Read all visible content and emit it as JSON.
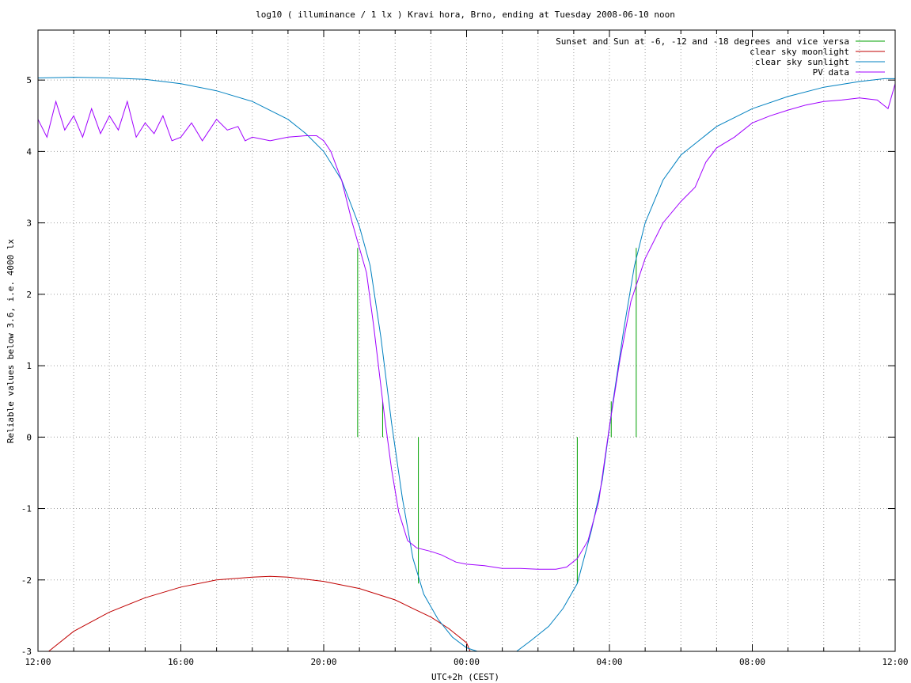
{
  "chart_data": {
    "type": "line",
    "title": "log10 ( illuminance / 1 lx ) Kravi hora, Brno, ending at Tuesday 2008-06-10 noon",
    "xlabel": "UTC+2h (CEST)",
    "ylabel": "Reliable values below 3.6, i.e. 4000 lx",
    "x_unit": "hours since 12:00",
    "xlim": [
      0,
      24
    ],
    "ylim": [
      -3,
      5.7
    ],
    "grid": true,
    "legend_position": "top-right",
    "x_ticks": [
      {
        "x": 0,
        "label": "12:00"
      },
      {
        "x": 4,
        "label": "16:00"
      },
      {
        "x": 8,
        "label": "20:00"
      },
      {
        "x": 12,
        "label": "00:00"
      },
      {
        "x": 16,
        "label": "04:00"
      },
      {
        "x": 20,
        "label": "08:00"
      },
      {
        "x": 24,
        "label": "12:00"
      }
    ],
    "y_ticks": [
      {
        "y": -3,
        "label": "-3"
      },
      {
        "y": -2,
        "label": "-2"
      },
      {
        "y": -1,
        "label": "-1"
      },
      {
        "y": 0,
        "label": "0"
      },
      {
        "y": 1,
        "label": "1"
      },
      {
        "y": 2,
        "label": "2"
      },
      {
        "y": 3,
        "label": "3"
      },
      {
        "y": 4,
        "label": "4"
      },
      {
        "y": 5,
        "label": "5"
      }
    ],
    "series": [
      {
        "name": "Sunset and Sun at -6, -12 and -18 degrees and vice versa",
        "color": "#00a000",
        "kind": "impulses",
        "points": [
          [
            8.95,
            2.65
          ],
          [
            9.65,
            0.5
          ],
          [
            10.65,
            -2.05
          ],
          [
            15.1,
            -2.05
          ],
          [
            16.05,
            0.5
          ],
          [
            16.75,
            2.65
          ]
        ]
      },
      {
        "name": "clear sky moonlight",
        "color": "#c00000",
        "kind": "line",
        "points": [
          [
            0.3,
            -3.0
          ],
          [
            1,
            -2.72
          ],
          [
            2,
            -2.45
          ],
          [
            3,
            -2.25
          ],
          [
            4,
            -2.1
          ],
          [
            5,
            -2.0
          ],
          [
            6,
            -1.96
          ],
          [
            6.5,
            -1.95
          ],
          [
            7,
            -1.96
          ],
          [
            8,
            -2.02
          ],
          [
            9,
            -2.12
          ],
          [
            10,
            -2.28
          ],
          [
            10.5,
            -2.4
          ],
          [
            11,
            -2.52
          ],
          [
            11.5,
            -2.68
          ],
          [
            12,
            -2.88
          ],
          [
            12.1,
            -3.0
          ]
        ]
      },
      {
        "name": "clear sky sunlight",
        "color": "#0080c0",
        "kind": "line",
        "points": [
          [
            0,
            5.03
          ],
          [
            1,
            5.04
          ],
          [
            2,
            5.03
          ],
          [
            3,
            5.01
          ],
          [
            4,
            4.95
          ],
          [
            5,
            4.85
          ],
          [
            6,
            4.7
          ],
          [
            7,
            4.45
          ],
          [
            7.5,
            4.25
          ],
          [
            8,
            4.0
          ],
          [
            8.5,
            3.6
          ],
          [
            9,
            2.95
          ],
          [
            9.3,
            2.4
          ],
          [
            9.6,
            1.4
          ],
          [
            9.9,
            0.2
          ],
          [
            10.2,
            -0.85
          ],
          [
            10.5,
            -1.7
          ],
          [
            10.8,
            -2.2
          ],
          [
            11.2,
            -2.55
          ],
          [
            11.6,
            -2.8
          ],
          [
            12.0,
            -2.95
          ],
          [
            12.3,
            -3.0
          ],
          [
            13.4,
            -3.0
          ],
          [
            13.8,
            -2.85
          ],
          [
            14.3,
            -2.65
          ],
          [
            14.7,
            -2.4
          ],
          [
            15.1,
            -2.05
          ],
          [
            15.5,
            -1.3
          ],
          [
            15.8,
            -0.6
          ],
          [
            16.1,
            0.5
          ],
          [
            16.4,
            1.5
          ],
          [
            16.7,
            2.4
          ],
          [
            17,
            3.0
          ],
          [
            17.5,
            3.6
          ],
          [
            18,
            3.95
          ],
          [
            19,
            4.35
          ],
          [
            20,
            4.6
          ],
          [
            21,
            4.77
          ],
          [
            22,
            4.9
          ],
          [
            23,
            4.98
          ],
          [
            23.7,
            5.02
          ],
          [
            24,
            5.02
          ]
        ]
      },
      {
        "name": "PV data",
        "color": "#a000ff",
        "kind": "line",
        "points": [
          [
            0,
            4.45
          ],
          [
            0.25,
            4.2
          ],
          [
            0.5,
            4.7
          ],
          [
            0.75,
            4.3
          ],
          [
            1,
            4.5
          ],
          [
            1.25,
            4.2
          ],
          [
            1.5,
            4.6
          ],
          [
            1.75,
            4.25
          ],
          [
            2,
            4.5
          ],
          [
            2.25,
            4.3
          ],
          [
            2.5,
            4.7
          ],
          [
            2.75,
            4.2
          ],
          [
            3,
            4.4
          ],
          [
            3.25,
            4.25
          ],
          [
            3.5,
            4.5
          ],
          [
            3.75,
            4.15
          ],
          [
            4,
            4.2
          ],
          [
            4.3,
            4.4
          ],
          [
            4.6,
            4.15
          ],
          [
            5,
            4.45
          ],
          [
            5.3,
            4.3
          ],
          [
            5.6,
            4.35
          ],
          [
            5.8,
            4.15
          ],
          [
            6,
            4.2
          ],
          [
            6.5,
            4.15
          ],
          [
            7,
            4.2
          ],
          [
            7.5,
            4.22
          ],
          [
            7.8,
            4.22
          ],
          [
            8,
            4.15
          ],
          [
            8.2,
            4.0
          ],
          [
            8.5,
            3.6
          ],
          [
            8.8,
            3.0
          ],
          [
            9.0,
            2.65
          ],
          [
            9.2,
            2.3
          ],
          [
            9.4,
            1.55
          ],
          [
            9.7,
            0.3
          ],
          [
            9.9,
            -0.45
          ],
          [
            10.1,
            -1.05
          ],
          [
            10.35,
            -1.45
          ],
          [
            10.6,
            -1.55
          ],
          [
            11.0,
            -1.6
          ],
          [
            11.3,
            -1.65
          ],
          [
            11.5,
            -1.7
          ],
          [
            11.7,
            -1.75
          ],
          [
            12,
            -1.78
          ],
          [
            12.5,
            -1.8
          ],
          [
            13,
            -1.84
          ],
          [
            13.5,
            -1.84
          ],
          [
            14,
            -1.85
          ],
          [
            14.5,
            -1.85
          ],
          [
            14.8,
            -1.82
          ],
          [
            15.1,
            -1.7
          ],
          [
            15.4,
            -1.45
          ],
          [
            15.7,
            -0.9
          ],
          [
            16.0,
            0.15
          ],
          [
            16.3,
            1.1
          ],
          [
            16.6,
            1.9
          ],
          [
            17,
            2.5
          ],
          [
            17.5,
            3.0
          ],
          [
            18,
            3.3
          ],
          [
            18.4,
            3.5
          ],
          [
            18.7,
            3.85
          ],
          [
            19,
            4.05
          ],
          [
            19.5,
            4.2
          ],
          [
            20,
            4.4
          ],
          [
            20.5,
            4.5
          ],
          [
            21,
            4.58
          ],
          [
            21.5,
            4.65
          ],
          [
            22,
            4.7
          ],
          [
            22.5,
            4.72
          ],
          [
            23,
            4.75
          ],
          [
            23.5,
            4.72
          ],
          [
            23.8,
            4.6
          ],
          [
            24,
            4.95
          ]
        ]
      }
    ]
  }
}
